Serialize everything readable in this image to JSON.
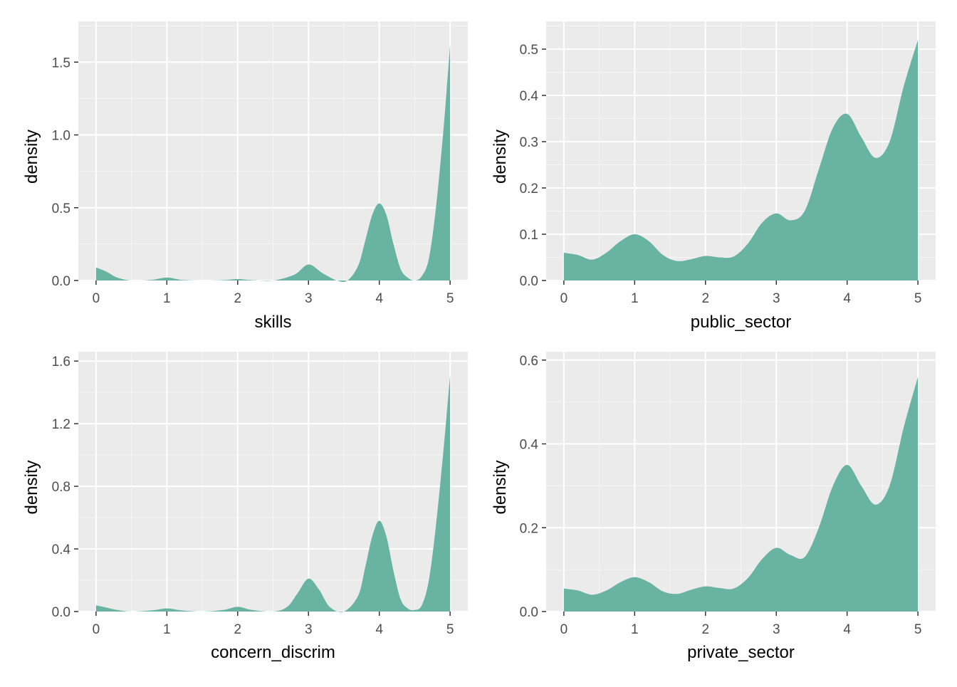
{
  "colors": {
    "panel_background": "#ebebeb",
    "grid_major": "#ffffff",
    "grid_minor": "#f5f5f5",
    "fill": "#69b3a2",
    "tick": "#333333",
    "tick_label": "#4d4d4d"
  },
  "chart_data": [
    {
      "type": "area",
      "subtype": "density",
      "xlabel": "skills",
      "ylabel": "density",
      "xlim": [
        -0.25,
        5.25
      ],
      "ylim": [
        0,
        1.78
      ],
      "xticks": [
        0,
        1,
        2,
        3,
        4,
        5
      ],
      "yticks": [
        0.0,
        0.5,
        1.0,
        1.5
      ],
      "ytick_labels": [
        "0.0",
        "0.5",
        "1.0",
        "1.5"
      ],
      "grid": true,
      "series": [
        {
          "x": [
            0,
            0.15,
            0.3,
            0.5,
            0.8,
            1,
            1.2,
            1.5,
            1.8,
            2,
            2.2,
            2.5,
            2.8,
            3,
            3.2,
            3.4,
            3.55,
            3.7,
            3.8,
            3.9,
            4,
            4.1,
            4.2,
            4.3,
            4.4,
            4.5,
            4.6,
            4.7,
            4.8,
            4.9,
            4.95,
            5
          ],
          "y": [
            0.09,
            0.06,
            0.02,
            0.0,
            0.005,
            0.02,
            0.005,
            0.0,
            0.003,
            0.01,
            0.003,
            0.0,
            0.04,
            0.11,
            0.05,
            0.0,
            0.0,
            0.1,
            0.27,
            0.45,
            0.53,
            0.45,
            0.25,
            0.08,
            0.02,
            0.0,
            0.03,
            0.15,
            0.5,
            1.0,
            1.3,
            1.62
          ]
        }
      ]
    },
    {
      "type": "area",
      "subtype": "density",
      "xlabel": "public_sector",
      "ylabel": "density",
      "xlim": [
        -0.25,
        5.25
      ],
      "ylim": [
        0,
        0.56
      ],
      "xticks": [
        0,
        1,
        2,
        3,
        4,
        5
      ],
      "yticks": [
        0.0,
        0.1,
        0.2,
        0.3,
        0.4,
        0.5
      ],
      "ytick_labels": [
        "0.0",
        "0.1",
        "0.2",
        "0.3",
        "0.4",
        "0.5"
      ],
      "grid": true,
      "series": [
        {
          "x": [
            0,
            0.2,
            0.4,
            0.6,
            0.8,
            1,
            1.2,
            1.4,
            1.6,
            1.8,
            2,
            2.2,
            2.4,
            2.6,
            2.8,
            3,
            3.2,
            3.4,
            3.6,
            3.8,
            4,
            4.2,
            4.4,
            4.6,
            4.8,
            5
          ],
          "y": [
            0.06,
            0.055,
            0.045,
            0.06,
            0.085,
            0.1,
            0.085,
            0.055,
            0.042,
            0.046,
            0.053,
            0.05,
            0.052,
            0.08,
            0.125,
            0.145,
            0.13,
            0.15,
            0.24,
            0.33,
            0.36,
            0.31,
            0.265,
            0.3,
            0.42,
            0.52
          ]
        }
      ]
    },
    {
      "type": "area",
      "subtype": "density",
      "xlabel": "concern_discrim",
      "ylabel": "density",
      "xlim": [
        -0.25,
        5.25
      ],
      "ylim": [
        0,
        1.66
      ],
      "xticks": [
        0,
        1,
        2,
        3,
        4,
        5
      ],
      "yticks": [
        0.0,
        0.4,
        0.8,
        1.2,
        1.6
      ],
      "ytick_labels": [
        "0.0",
        "0.4",
        "0.8",
        "1.2",
        "1.6"
      ],
      "grid": true,
      "series": [
        {
          "x": [
            0,
            0.15,
            0.3,
            0.5,
            0.8,
            1,
            1.2,
            1.5,
            1.8,
            2,
            2.2,
            2.5,
            2.7,
            2.85,
            3,
            3.15,
            3.3,
            3.5,
            3.7,
            3.8,
            3.9,
            4,
            4.1,
            4.2,
            4.3,
            4.4,
            4.5,
            4.6,
            4.7,
            4.8,
            4.9,
            4.95,
            5
          ],
          "y": [
            0.04,
            0.025,
            0.01,
            0.0,
            0.008,
            0.02,
            0.008,
            0.0,
            0.01,
            0.03,
            0.01,
            0.0,
            0.03,
            0.12,
            0.21,
            0.14,
            0.03,
            0.0,
            0.1,
            0.28,
            0.48,
            0.58,
            0.48,
            0.26,
            0.08,
            0.02,
            0.01,
            0.04,
            0.2,
            0.55,
            1.0,
            1.25,
            1.51
          ]
        }
      ]
    },
    {
      "type": "area",
      "subtype": "density",
      "xlabel": "private_sector",
      "ylabel": "density",
      "xlim": [
        -0.25,
        5.25
      ],
      "ylim": [
        0,
        0.62
      ],
      "xticks": [
        0,
        1,
        2,
        3,
        4,
        5
      ],
      "yticks": [
        0.0,
        0.2,
        0.4,
        0.6
      ],
      "ytick_labels": [
        "0.0",
        "0.2",
        "0.4",
        "0.6"
      ],
      "grid": true,
      "series": [
        {
          "x": [
            0,
            0.2,
            0.4,
            0.6,
            0.8,
            1,
            1.2,
            1.4,
            1.6,
            1.8,
            2,
            2.2,
            2.4,
            2.6,
            2.8,
            3,
            3.2,
            3.4,
            3.6,
            3.8,
            4,
            4.2,
            4.4,
            4.6,
            4.8,
            5
          ],
          "y": [
            0.055,
            0.05,
            0.04,
            0.05,
            0.07,
            0.082,
            0.07,
            0.048,
            0.042,
            0.052,
            0.06,
            0.056,
            0.055,
            0.08,
            0.125,
            0.152,
            0.135,
            0.13,
            0.2,
            0.3,
            0.35,
            0.3,
            0.255,
            0.3,
            0.44,
            0.56
          ]
        }
      ]
    }
  ]
}
